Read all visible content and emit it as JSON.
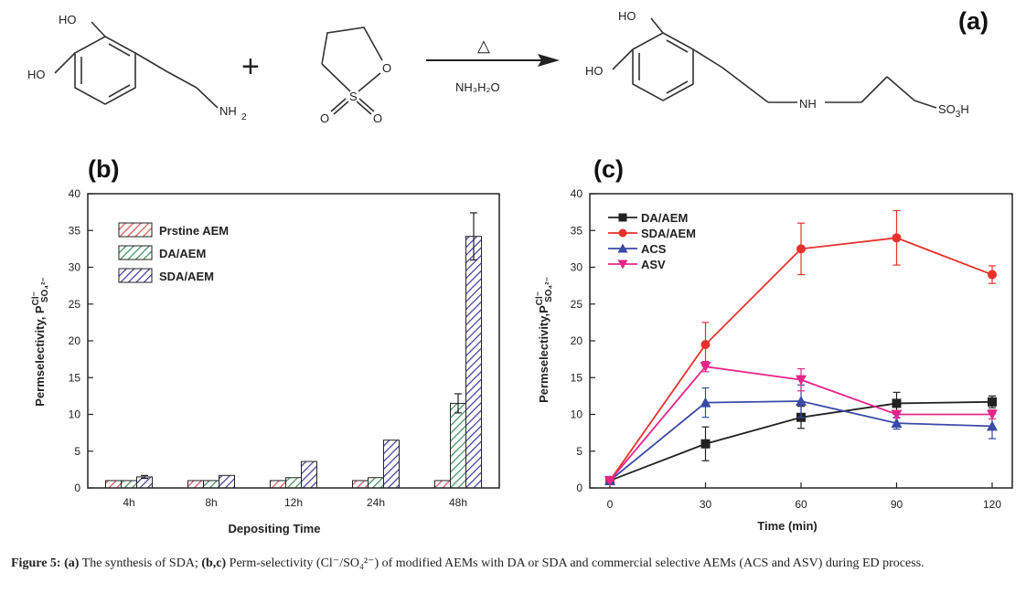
{
  "scheme": {
    "panel_label": "(a)",
    "reactant1_labels": [
      "HO",
      "HO",
      "NH",
      "2"
    ],
    "plus": "+",
    "reactant2_labels": [
      "O",
      "S",
      "O",
      "O"
    ],
    "arrow_top": "△",
    "arrow_bottom": "NH₃H₂O",
    "product_labels": [
      "HO",
      "HO",
      "NH",
      "SO",
      "3",
      "H"
    ]
  },
  "chart_data": [
    {
      "panel_label": "(b)",
      "type": "bar",
      "categories": [
        "4h",
        "8h",
        "12h",
        "24h",
        "48h"
      ],
      "series": [
        {
          "name": "Prstine AEM",
          "color": "#d9534f",
          "values": [
            1.0,
            1.0,
            1.0,
            1.0,
            1.0
          ],
          "errors": [
            0,
            0,
            0,
            0,
            0
          ]
        },
        {
          "name": "DA/AEM",
          "color": "#3a8f5a",
          "values": [
            1.0,
            1.0,
            1.4,
            1.4,
            11.5
          ],
          "errors": [
            0,
            0,
            0,
            0,
            1.3
          ]
        },
        {
          "name": "SDA/AEM",
          "color": "#3a3a9a",
          "values": [
            1.5,
            1.7,
            3.6,
            6.5,
            34.2
          ],
          "errors": [
            0.2,
            0,
            0,
            0,
            3.2
          ]
        }
      ],
      "xlabel": "Depositing Time",
      "ylabel_main": "Permselectivity, P",
      "ylabel_sup": "Cl⁻",
      "ylabel_sub": "SO₄²⁻",
      "ylim": [
        0,
        40
      ],
      "yticks": [
        0,
        5,
        10,
        15,
        20,
        25,
        30,
        35,
        40
      ],
      "legend": "top-left"
    },
    {
      "panel_label": "(c)",
      "type": "line",
      "x": [
        0,
        30,
        60,
        90,
        120
      ],
      "xticks": [
        "0",
        "30",
        "60",
        "90",
        "120"
      ],
      "series": [
        {
          "name": "DA/AEM",
          "color": "#222222",
          "marker": "square",
          "values": [
            1,
            6,
            9.6,
            11.5,
            11.7
          ],
          "errors": [
            0,
            2.3,
            1.5,
            1.5,
            0.8
          ]
        },
        {
          "name": "SDA/AEM",
          "color": "#e8322b",
          "marker": "circle",
          "values": [
            1,
            19.5,
            32.5,
            34,
            29
          ],
          "errors": [
            0,
            3,
            3.5,
            3.7,
            1.2
          ]
        },
        {
          "name": "ACS",
          "color": "#3a4aa8",
          "marker": "triangle-up",
          "values": [
            1,
            11.6,
            11.8,
            8.8,
            8.4
          ],
          "errors": [
            0,
            2,
            2.2,
            0.8,
            1.7
          ]
        },
        {
          "name": "ASV",
          "color": "#e8248a",
          "marker": "triangle-down",
          "values": [
            1,
            16.5,
            14.7,
            10,
            10
          ],
          "errors": [
            0,
            0.7,
            1.5,
            0.5,
            0.6
          ]
        }
      ],
      "xlabel": "Time (min)",
      "ylabel_main": "Permselectivity,P",
      "ylabel_sup": "Cl⁻",
      "ylabel_sub": "SO₄²⁻",
      "xlim": [
        0,
        120
      ],
      "ylim": [
        0,
        40
      ],
      "yticks": [
        0,
        5,
        10,
        15,
        20,
        25,
        30,
        35,
        40
      ],
      "legend": "top-left"
    }
  ],
  "caption": {
    "figure_label": "Figure 5:",
    "a_label": "(a)",
    "a_text": " The synthesis of SDA; ",
    "bc_label": "(b,c)",
    "bc_text": " Perm-selectivity (Cl⁻/SO₄²⁻) of modified AEMs with DA or SDA and commercial selective AEMs (ACS and ASV) during ED process."
  }
}
